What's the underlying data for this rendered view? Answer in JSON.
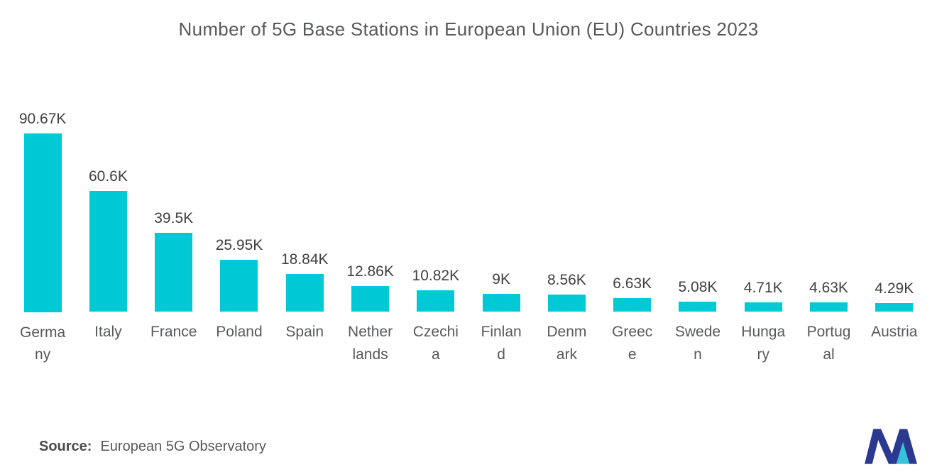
{
  "source": {
    "label": "Source:",
    "text": "European 5G Observatory"
  },
  "colors": {
    "bar": "#00c9d6",
    "title": "#58595b",
    "value_label": "#414042",
    "category_label": "#58595b",
    "logo_dark": "#2b3990",
    "logo_cyan": "#35c4dc"
  },
  "logo_name": "mordor-intelligence-logo",
  "chart_data": {
    "type": "bar",
    "title": "Number of 5G Base Stations in European Union (EU) Countries 2023",
    "categories": [
      "Germany",
      "Italy",
      "France",
      "Poland",
      "Spain",
      "Netherlands",
      "Czechia",
      "Finland",
      "Denmark",
      "Greece",
      "Sweden",
      "Hungary",
      "Portugal",
      "Austria"
    ],
    "tick_labels": [
      "Germa\nny",
      "Italy",
      "France",
      "Poland",
      "Spain",
      "Nether\nlands",
      "Czechi\na",
      "Finlan\nd",
      "Denm\nark",
      "Greec\ne",
      "Swede\nn",
      "Hunga\nry",
      "Portug\nal",
      "Austria"
    ],
    "values": [
      90.67,
      60.6,
      39.5,
      25.95,
      18.84,
      12.86,
      10.82,
      9,
      8.56,
      6.63,
      5.08,
      4.71,
      4.63,
      4.29
    ],
    "value_labels": [
      "90.67K",
      "60.6K",
      "39.5K",
      "25.95K",
      "18.84K",
      "12.86K",
      "10.82K",
      "9K",
      "8.56K",
      "6.63K",
      "5.08K",
      "4.71K",
      "4.63K",
      "4.29K"
    ],
    "unit": "K",
    "xlabel": "",
    "ylabel": "",
    "ylim": [
      0,
      95
    ],
    "grid": false,
    "legend": false,
    "bar_color": "#00c9d6"
  }
}
